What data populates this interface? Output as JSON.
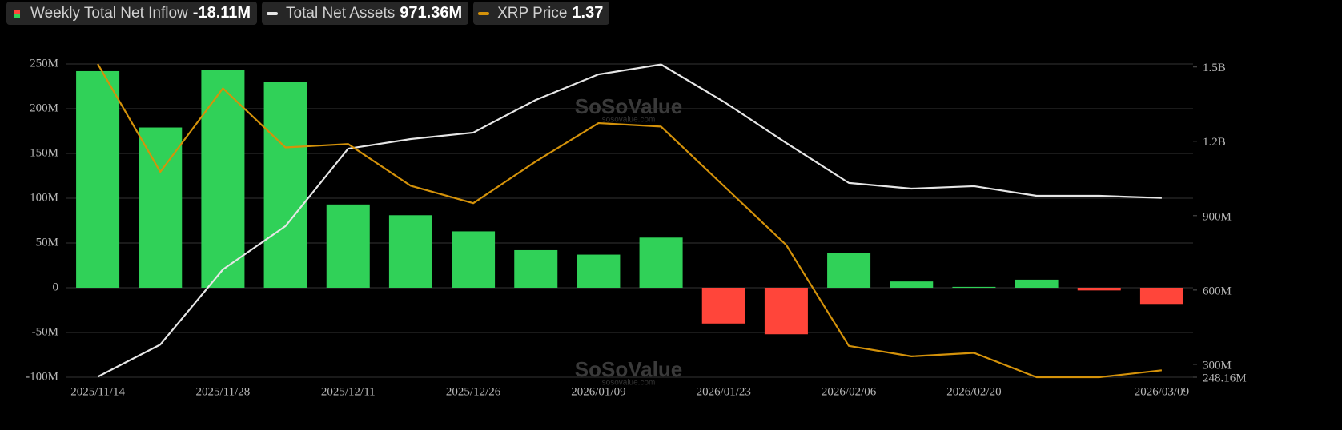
{
  "chart_data": {
    "type": "bar-line",
    "watermark": "SoSoValue",
    "watermark_url": "sosovalue.com",
    "categories": [
      "2025/11/14",
      null,
      "2025/11/28",
      null,
      "2025/12/11",
      null,
      "2025/12/26",
      null,
      "2026/01/09",
      null,
      "2026/01/23",
      null,
      "2026/02/06",
      null,
      "2026/02/20",
      null,
      null,
      "2026/03/09"
    ],
    "ylim": [
      -100,
      250
    ],
    "yticks": [
      {
        "value": -100,
        "label": "-100M"
      },
      {
        "value": -50,
        "label": "-50M"
      },
      0,
      {
        "value": 50,
        "label": "50M"
      },
      {
        "value": 100,
        "label": "100M"
      },
      {
        "value": 150,
        "label": "150M"
      },
      {
        "value": 200,
        "label": "200M"
      },
      {
        "value": 250,
        "label": "250M"
      }
    ],
    "y2lim": [
      248.16,
      1512
    ],
    "y2ticks": [
      {
        "value": 248.16,
        "label": "248.16M"
      },
      {
        "value": 300,
        "label": "300M"
      },
      {
        "value": 600,
        "label": "600M"
      },
      {
        "value": 900,
        "label": "900M"
      },
      {
        "value": 1200,
        "label": "1.2B"
      },
      {
        "value": 1500,
        "label": "1.5B"
      }
    ],
    "y3lim": [
      1.35,
      2.25
    ],
    "grid": true,
    "series": [
      {
        "name": "Weekly Total Net Inflow",
        "legend_value": "-18.11M",
        "type": "bar",
        "color": "#30d158",
        "negative_color": "#ff453a",
        "values": [
          242,
          179,
          243,
          230,
          93,
          81,
          63,
          42,
          37,
          56,
          -40,
          -52,
          39,
          7,
          1,
          9,
          -3,
          -18.11
        ]
      },
      {
        "name": "Total Net Assets",
        "legend_value": "971.36M",
        "type": "line",
        "axis": "y2",
        "color": "#e6e6e6",
        "values": [
          250,
          380,
          683,
          858,
          1170,
          1209,
          1235,
          1367,
          1470,
          1510,
          1360,
          1193,
          1032,
          1009,
          1019,
          980,
          980,
          971.36
        ]
      },
      {
        "name": "XRP Price",
        "type": "line",
        "axis": "y3",
        "color": "#d4920a",
        "values": [
          2.25,
          1.94,
          2.18,
          2.01,
          2.02,
          1.9,
          1.85,
          1.97,
          2.08,
          2.07,
          1.9,
          1.73,
          1.44,
          1.41,
          1.42,
          1.35,
          1.35,
          1.37
        ]
      }
    ]
  }
}
